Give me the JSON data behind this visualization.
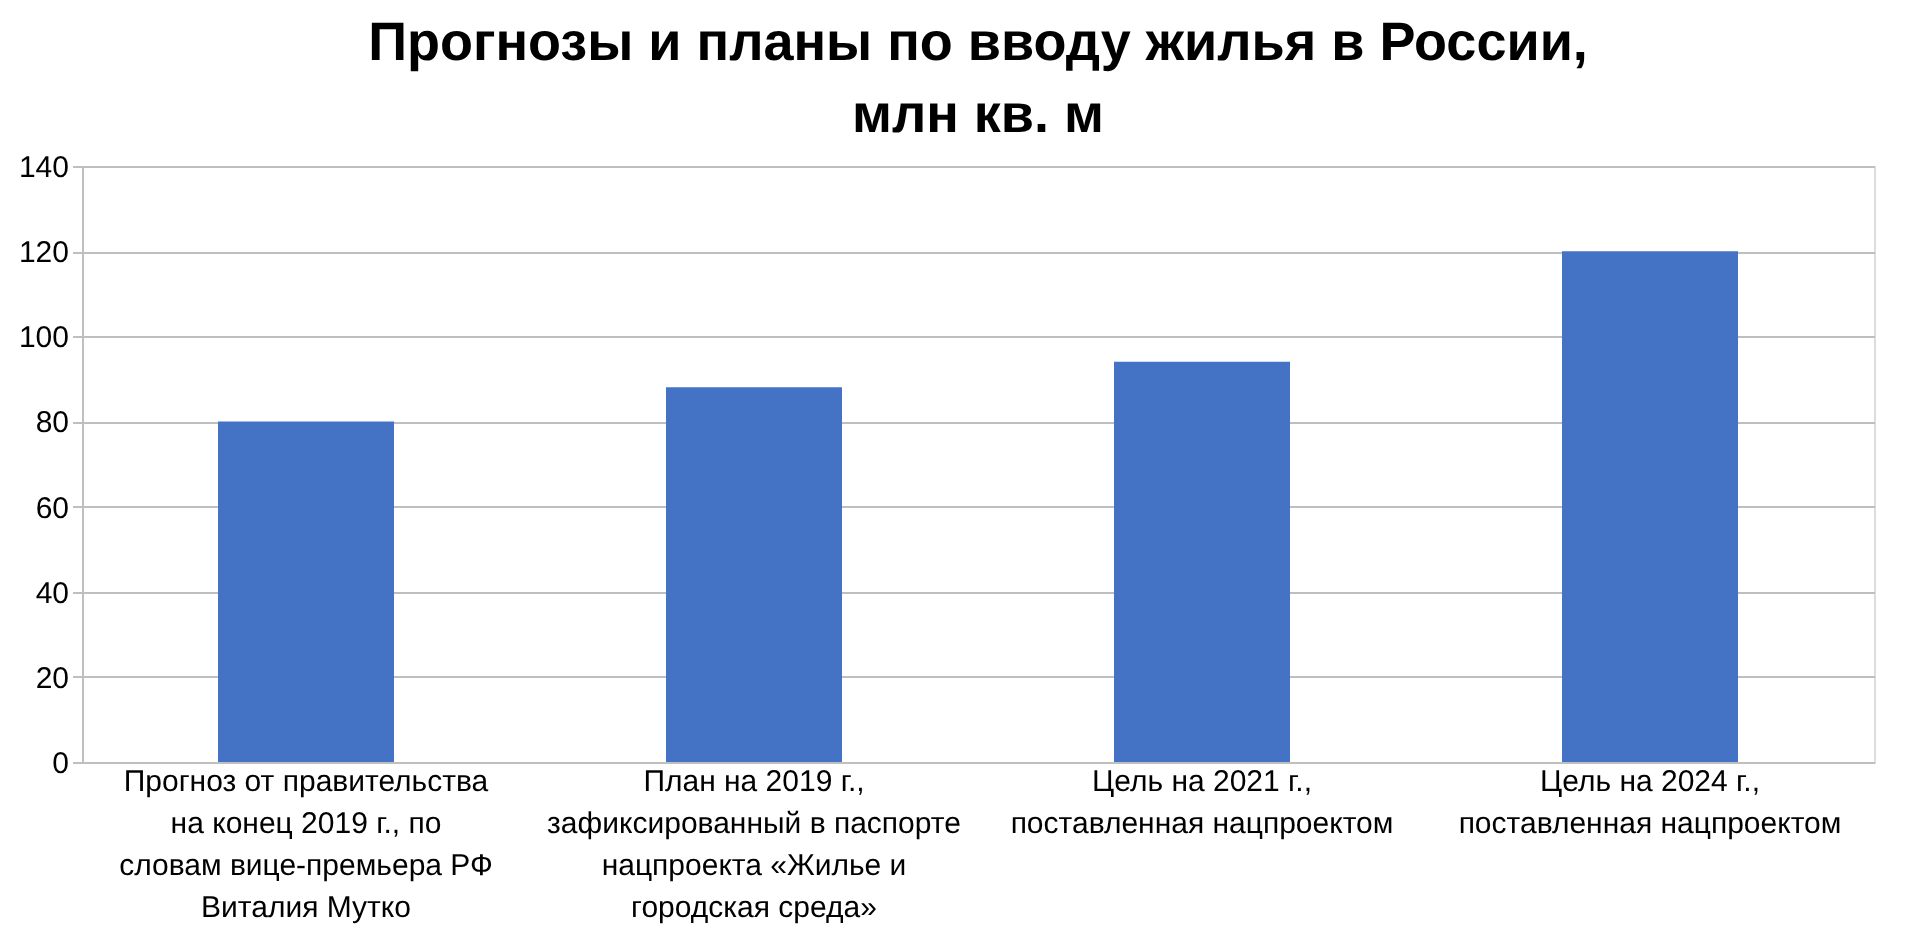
{
  "chart_data": {
    "type": "bar",
    "title": "Прогнозы и планы по вводу жилья в России, млн кв. м",
    "categories": [
      "Прогноз от правительства на конец 2019 г., по словам вице-премьера РФ Виталия Мутко",
      "План на 2019 г., зафиксированный в паспорте нацпроекта «Жилье и городская среда»",
      "Цель на 2021 г., поставленная нацпроектом",
      "Цель на 2024 г., поставленная нацпроектом"
    ],
    "values": [
      80,
      88,
      94,
      120
    ],
    "color": "#4472c4",
    "ylim": [
      0,
      140
    ],
    "yticks": [
      0,
      20,
      40,
      60,
      80,
      100,
      120,
      140
    ],
    "grid": "y"
  }
}
